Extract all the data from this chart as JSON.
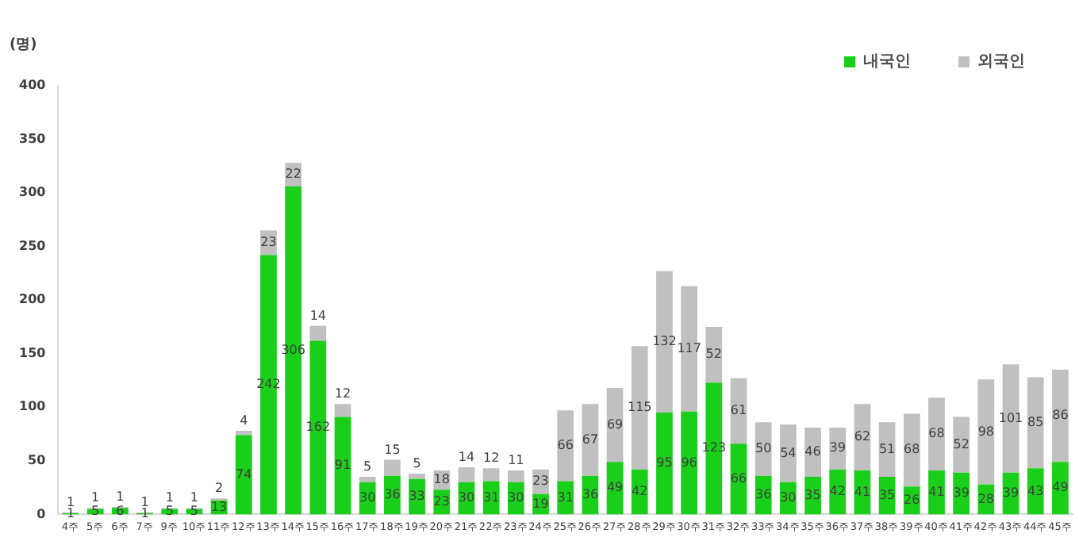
{
  "chart_data": {
    "type": "bar",
    "stacked": true,
    "ylabel": "(명)",
    "legend": "top right",
    "data_labels": true,
    "grid": false,
    "categories": [
      "4주",
      "5주",
      "6주",
      "7주",
      "9주",
      "10주",
      "11주",
      "12주",
      "13주",
      "14주",
      "15주",
      "16주",
      "17주",
      "18주",
      "19주",
      "20주",
      "21주",
      "22주",
      "23주",
      "24주",
      "25주",
      "26주",
      "27주",
      "28주",
      "29주",
      "30주",
      "31주",
      "32주",
      "33주",
      "34주",
      "35주",
      "36주",
      "37주",
      "38주",
      "39주",
      "40주",
      "41주",
      "42주",
      "43주",
      "44주",
      "45주"
    ],
    "ylim": [
      0,
      400
    ],
    "yticks": [
      0,
      50,
      100,
      150,
      200,
      250,
      300,
      350,
      400
    ],
    "series": [
      {
        "name": "내국인",
        "color": "#19cf19",
        "values": [
          1,
          5,
          6,
          1,
          5,
          5,
          13,
          74,
          242,
          306,
          162,
          91,
          30,
          36,
          33,
          23,
          30,
          31,
          30,
          19,
          31,
          36,
          49,
          42,
          95,
          96,
          123,
          66,
          36,
          30,
          35,
          42,
          41,
          35,
          26,
          41,
          39,
          28,
          39,
          43,
          49
        ]
      },
      {
        "name": "외국인",
        "color": "#c0c0c0",
        "values": [
          1,
          1,
          1,
          1,
          1,
          1,
          2,
          4,
          23,
          22,
          14,
          12,
          5,
          15,
          5,
          18,
          14,
          12,
          11,
          23,
          66,
          67,
          69,
          115,
          132,
          117,
          52,
          61,
          50,
          54,
          46,
          39,
          62,
          51,
          68,
          68,
          52,
          98,
          101,
          85,
          86
        ]
      }
    ]
  }
}
